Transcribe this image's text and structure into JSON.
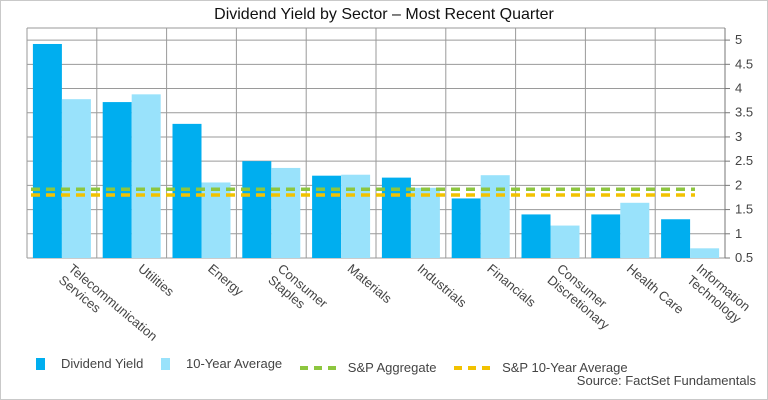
{
  "colors": {
    "dividend_yield": "#00AEEF",
    "ten_year_average": "#99E2FB",
    "sp_aggregate": "#8DC63F",
    "sp_ten_year_average": "#F2C200",
    "grid": "#9a9a9a"
  },
  "source": "Source: FactSet Fundamentals",
  "chart_data": {
    "type": "bar",
    "title": "Dividend Yield by Sector – Most Recent Quarter",
    "categories": [
      [
        "Telecommunication",
        "Services"
      ],
      [
        "Utilities"
      ],
      [
        "Energy"
      ],
      [
        "Consumer",
        "Staples"
      ],
      [
        "Materials"
      ],
      [
        "Industrials"
      ],
      [
        "Financials"
      ],
      [
        "Consumer",
        "Discretionary"
      ],
      [
        "Health Care"
      ],
      [
        "Information",
        "Technology"
      ]
    ],
    "series": [
      {
        "name": "Dividend Yield",
        "values": [
          4.92,
          3.72,
          3.27,
          2.5,
          2.2,
          2.16,
          1.73,
          1.4,
          1.4,
          1.3
        ]
      },
      {
        "name": "10-Year Average",
        "values": [
          3.78,
          3.88,
          2.06,
          2.36,
          2.22,
          1.95,
          2.21,
          1.17,
          1.64,
          0.7
        ]
      }
    ],
    "reference_lines": [
      {
        "name": "S&P Aggregate",
        "value": 1.92
      },
      {
        "name": "S&P 10-Year Average",
        "value": 1.8
      }
    ],
    "yticks": [
      0.5,
      1,
      1.5,
      2,
      2.5,
      3,
      3.5,
      4,
      4.5,
      5
    ],
    "ylim": [
      0.5,
      5.25
    ],
    "y_axis_side": "right",
    "grid": true,
    "legend_position": "bottom"
  }
}
